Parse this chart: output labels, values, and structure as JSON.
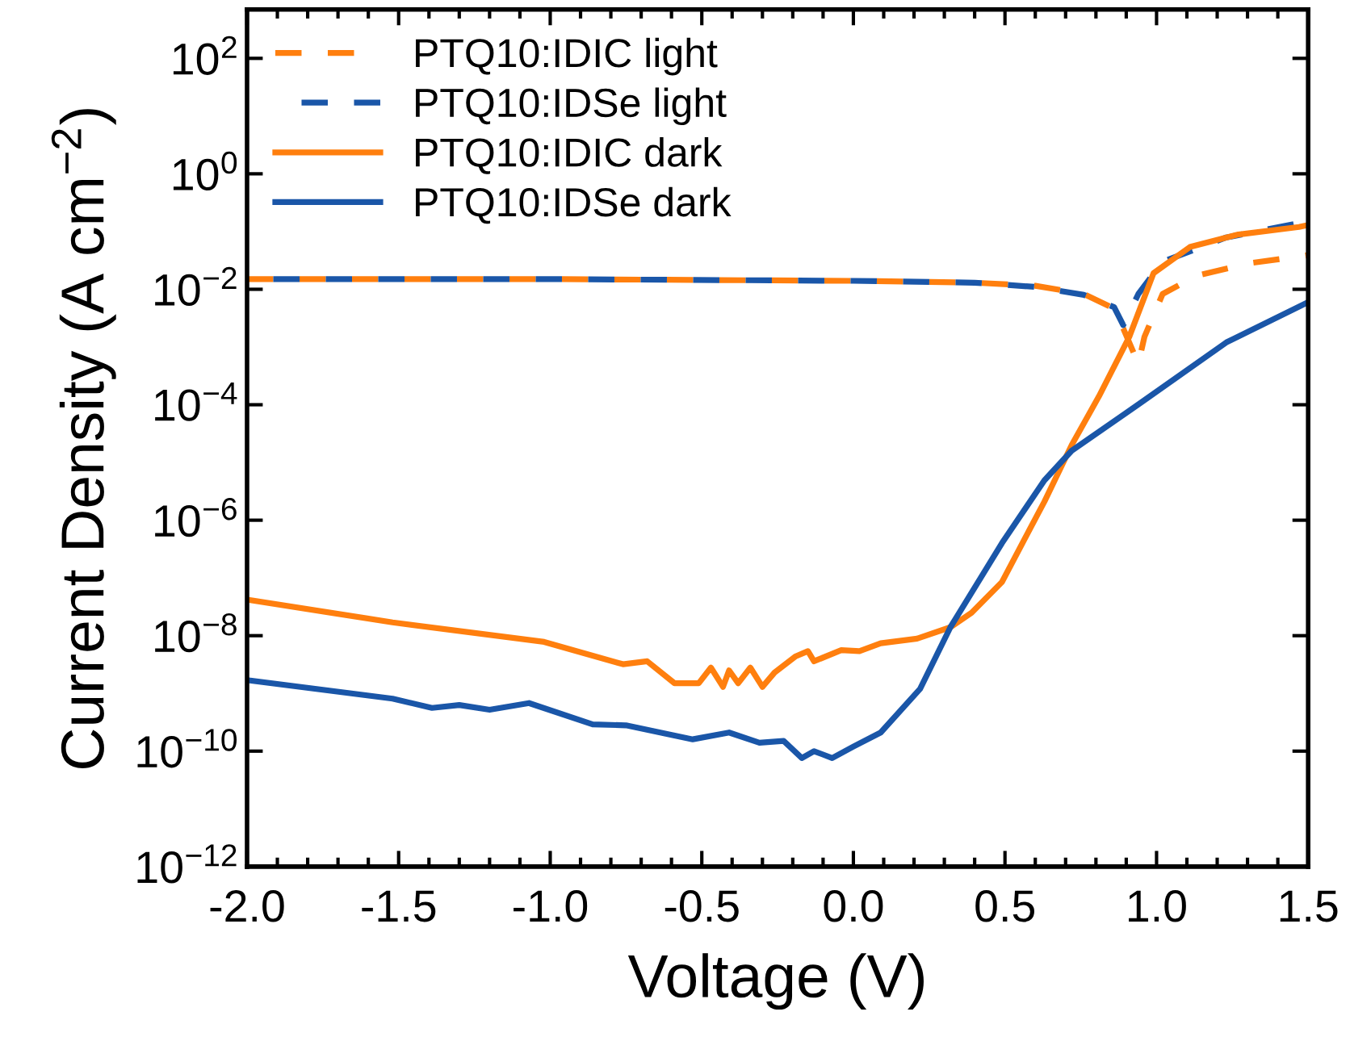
{
  "chart_data": {
    "type": "line",
    "xlabel": "Voltage (V)",
    "ylabel": "Current Density (A cm$^{−2}$)",
    "log": "y",
    "legend": "top left",
    "xlim": [
      -2.0,
      1.5
    ],
    "xticks": [
      {
        "value": -2.0,
        "label": "-2.0"
      },
      {
        "value": -1.5,
        "label": "-1.5"
      },
      {
        "value": -1.0,
        "label": "-1.0"
      },
      {
        "value": -0.5,
        "label": "-0.5"
      },
      {
        "value": 0.0,
        "label": "0.0"
      },
      {
        "value": 0.5,
        "label": "0.5"
      },
      {
        "value": 1.0,
        "label": "1.0"
      },
      {
        "value": 1.5,
        "label": "1.5"
      }
    ],
    "ylim": [
      1e-12,
      700
    ],
    "yticks": [
      {
        "value": 1e-12,
        "label": "10$^{−12}$"
      },
      {
        "value": 1e-10,
        "label": "10$^{−10}$"
      },
      {
        "value": 1e-08,
        "label": "10$^{−8}$"
      },
      {
        "value": 1e-06,
        "label": "10$^{−6}$"
      },
      {
        "value": 0.0001,
        "label": "10$^{−4}$"
      },
      {
        "value": 0.01,
        "label": "10$^{−2}$"
      },
      {
        "value": 1,
        "label": "10$^{0}$"
      },
      {
        "value": 100,
        "label": "10$^{2}$"
      }
    ],
    "series": [
      {
        "name": "PTQ10:IDIC light",
        "color": "#ff7f0e",
        "line_style": "dashed",
        "x": [
          -2.0,
          -1.0,
          0.0,
          0.4,
          0.6,
          0.76,
          0.85,
          0.89,
          0.94,
          0.96,
          1.02,
          1.13,
          1.3,
          1.5
        ],
        "values": [
          0.015,
          0.015,
          0.014,
          0.013,
          0.0115,
          0.0083,
          0.0049,
          0.0021,
          0.00051,
          0.0015,
          0.0083,
          0.017,
          0.028,
          0.039
        ]
      },
      {
        "name": "PTQ10:IDSe light",
        "color": "#1a56a8",
        "line_style": "dashed",
        "x": [
          -2.0,
          -1.0,
          0.0,
          0.4,
          0.6,
          0.76,
          0.86,
          0.89,
          0.94,
          1.02,
          1.23,
          1.5
        ],
        "values": [
          0.015,
          0.015,
          0.014,
          0.013,
          0.011,
          0.008,
          0.0049,
          0.0024,
          0.0083,
          0.03,
          0.079,
          0.15
        ]
      },
      {
        "name": "PTQ10:IDIC dark",
        "color": "#ff7f0e",
        "line_style": "solid",
        "x": [
          -2.0,
          -1.52,
          -1.02,
          -0.76,
          -0.68,
          -0.59,
          -0.51,
          -0.47,
          -0.43,
          -0.41,
          -0.38,
          -0.34,
          -0.3,
          -0.26,
          -0.19,
          -0.15,
          -0.13,
          -0.04,
          0.02,
          0.09,
          0.21,
          0.32,
          0.39,
          0.49,
          0.63,
          0.72,
          0.81,
          0.91,
          0.99,
          1.11,
          1.27,
          1.47,
          1.5
        ],
        "values": [
          4.2e-08,
          1.7e-08,
          7.8e-09,
          3.2e-09,
          3.6e-09,
          1.5e-09,
          1.5e-09,
          2.8e-09,
          1.3e-09,
          2.5e-09,
          1.5e-09,
          2.8e-09,
          1.3e-09,
          2.3e-09,
          4.4e-09,
          5.4e-09,
          3.6e-09,
          5.6e-09,
          5.4e-09,
          7.4e-09,
          8.9e-09,
          1.4e-08,
          2.5e-08,
          8.5e-08,
          2.1e-06,
          2e-05,
          0.00014,
          0.0015,
          0.019,
          0.054,
          0.089,
          0.12,
          0.13
        ]
      },
      {
        "name": "PTQ10:IDSe dark",
        "color": "#1a56a8",
        "line_style": "solid",
        "x": [
          -2.0,
          -1.52,
          -1.39,
          -1.3,
          -1.2,
          -1.07,
          -0.86,
          -0.75,
          -0.53,
          -0.41,
          -0.31,
          -0.23,
          -0.17,
          -0.13,
          -0.07,
          0.0,
          0.09,
          0.22,
          0.32,
          0.49,
          0.63,
          0.72,
          0.95,
          1.23,
          1.5
        ],
        "values": [
          1.7e-09,
          8.1e-10,
          5.6e-10,
          6.3e-10,
          5.2e-10,
          6.8e-10,
          2.9e-10,
          2.8e-10,
          1.6e-10,
          2.1e-10,
          1.4e-10,
          1.5e-10,
          7.6e-11,
          1e-10,
          7.6e-11,
          1.2e-10,
          2.1e-10,
          1.2e-09,
          1.4e-08,
          4e-07,
          4.9e-06,
          1.6e-05,
          0.00011,
          0.0012,
          0.006
        ]
      }
    ]
  }
}
